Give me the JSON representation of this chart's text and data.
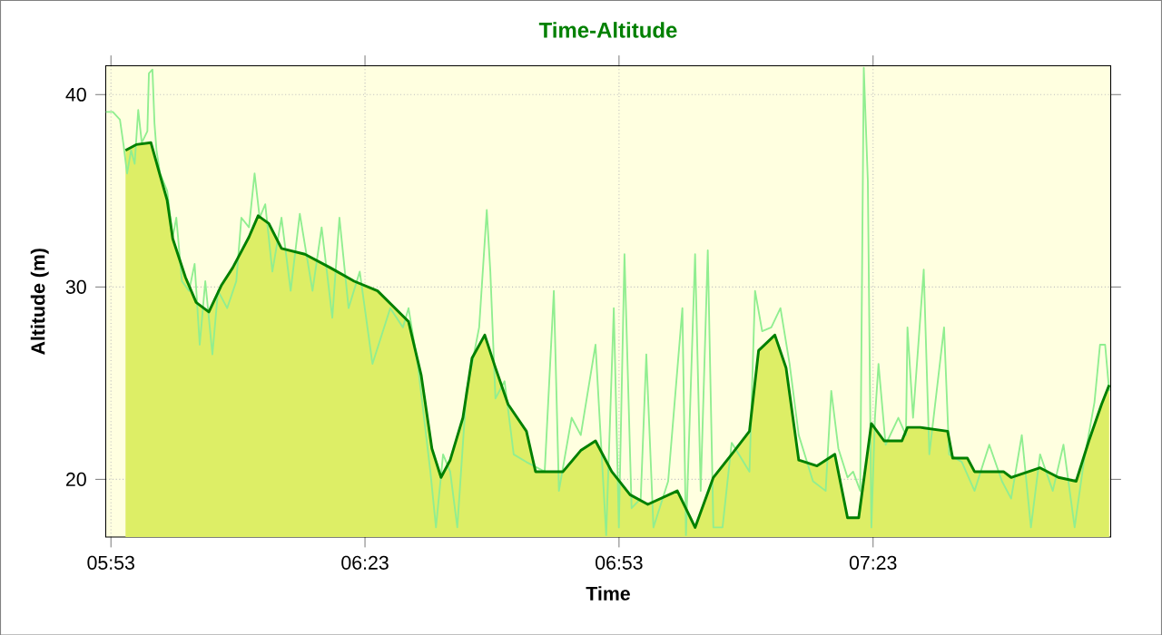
{
  "chart_data": {
    "type": "line",
    "title": "Time-Altitude",
    "xlabel": "Time",
    "ylabel": "Altitude (m)",
    "xlim": [
      5.873,
      7.851
    ],
    "ylim": [
      17,
      41.5
    ],
    "xticks": [
      {
        "value": 5.8833,
        "label": "05:53"
      },
      {
        "value": 6.3833,
        "label": "06:23"
      },
      {
        "value": 6.8833,
        "label": "06:53"
      },
      {
        "value": 7.3833,
        "label": "07:23"
      }
    ],
    "yticks": [
      20,
      30,
      40
    ],
    "grid": true,
    "series": [
      {
        "color": "#90ee90",
        "x": [
          5.873,
          5.887,
          5.901,
          5.908,
          5.915,
          5.923,
          5.93,
          5.937,
          5.944,
          5.955,
          5.958,
          5.965,
          5.969,
          5.973,
          5.98,
          5.994,
          6.005,
          6.012,
          6.023,
          6.037,
          6.048,
          6.058,
          6.069,
          6.083,
          6.094,
          6.112,
          6.13,
          6.14,
          6.155,
          6.166,
          6.176,
          6.187,
          6.201,
          6.219,
          6.237,
          6.255,
          6.28,
          6.298,
          6.319,
          6.333,
          6.351,
          6.373,
          6.398,
          6.433,
          6.458,
          6.469,
          6.487,
          6.512,
          6.523,
          6.537,
          6.551,
          6.565,
          6.583,
          6.594,
          6.608,
          6.623,
          6.63,
          6.64,
          6.658,
          6.676,
          6.701,
          6.737,
          6.755,
          6.765,
          6.79,
          6.808,
          6.837,
          6.858,
          6.873,
          6.883,
          6.894,
          6.908,
          6.926,
          6.937,
          6.951,
          6.98,
          7.008,
          7.015,
          7.033,
          7.044,
          7.058,
          7.069,
          7.087,
          7.105,
          7.14,
          7.151,
          7.165,
          7.183,
          7.201,
          7.219,
          7.237,
          7.265,
          7.29,
          7.301,
          7.315,
          7.333,
          7.344,
          7.358,
          7.365,
          7.373,
          7.38,
          7.387,
          7.394,
          7.408,
          7.433,
          7.448,
          7.451,
          7.462,
          7.483,
          7.494,
          7.523,
          7.533,
          7.558,
          7.583,
          7.612,
          7.637,
          7.655,
          7.676,
          7.694,
          7.712,
          7.737,
          7.758,
          7.78,
          7.798,
          7.819,
          7.83,
          7.84,
          7.848
        ],
        "values": [
          39.1,
          39.1,
          38.7,
          37.4,
          35.9,
          37.1,
          36.4,
          39.2,
          37.5,
          38.1,
          41.1,
          41.3,
          38.5,
          37.1,
          35.9,
          35.0,
          32.6,
          33.6,
          30.3,
          29.8,
          31.2,
          27.0,
          30.3,
          26.5,
          29.8,
          28.9,
          30.3,
          33.6,
          33.1,
          35.9,
          33.6,
          34.3,
          30.8,
          33.6,
          29.8,
          33.8,
          29.8,
          33.1,
          28.4,
          33.6,
          28.9,
          30.8,
          26.0,
          28.9,
          27.9,
          28.9,
          26.0,
          20.4,
          17.5,
          21.3,
          20.4,
          17.5,
          24.6,
          26.0,
          27.9,
          34.0,
          30.8,
          24.2,
          25.1,
          21.3,
          20.9,
          20.4,
          29.8,
          19.4,
          23.2,
          22.3,
          27.0,
          17.1,
          28.9,
          17.5,
          31.7,
          18.5,
          19.0,
          26.5,
          17.5,
          19.9,
          28.9,
          17.1,
          31.7,
          19.4,
          31.9,
          17.5,
          17.5,
          21.9,
          20.4,
          29.8,
          27.7,
          27.9,
          28.9,
          26.0,
          22.3,
          19.9,
          19.4,
          24.6,
          21.6,
          20.1,
          20.4,
          19.4,
          41.4,
          35.5,
          17.5,
          23.2,
          26.0,
          21.8,
          23.2,
          22.3,
          27.9,
          23.2,
          30.9,
          21.3,
          27.9,
          21.3,
          20.9,
          19.4,
          21.8,
          19.9,
          19.0,
          22.3,
          17.5,
          21.3,
          19.4,
          21.8,
          17.5,
          20.9,
          24.0,
          27.0,
          27.0,
          24.6
        ]
      },
      {
        "type": "area",
        "color": "#008000",
        "x": [
          5.912,
          5.933,
          5.962,
          5.98,
          5.994,
          6.005,
          6.03,
          6.051,
          6.076,
          6.101,
          6.123,
          6.155,
          6.173,
          6.194,
          6.219,
          6.265,
          6.315,
          6.362,
          6.408,
          6.469,
          6.494,
          6.515,
          6.533,
          6.551,
          6.576,
          6.594,
          6.619,
          6.64,
          6.665,
          6.701,
          6.719,
          6.773,
          6.808,
          6.837,
          6.869,
          6.905,
          6.94,
          6.998,
          7.033,
          7.069,
          7.105,
          7.14,
          7.158,
          7.19,
          7.212,
          7.237,
          7.273,
          7.308,
          7.333,
          7.355,
          7.38,
          7.405,
          7.44,
          7.451,
          7.476,
          7.53,
          7.54,
          7.569,
          7.583,
          7.64,
          7.655,
          7.712,
          7.748,
          7.783,
          7.808,
          7.833,
          7.848
        ],
        "values": [
          37.1,
          37.4,
          37.5,
          35.8,
          34.5,
          32.5,
          30.5,
          29.2,
          28.7,
          30.1,
          31.0,
          32.6,
          33.7,
          33.3,
          32.0,
          31.7,
          31.0,
          30.3,
          29.8,
          28.2,
          25.4,
          21.6,
          20.1,
          21.0,
          23.2,
          26.3,
          27.5,
          25.8,
          23.9,
          22.5,
          20.4,
          20.4,
          21.5,
          22.0,
          20.4,
          19.2,
          18.7,
          19.4,
          17.5,
          20.1,
          21.3,
          22.5,
          26.7,
          27.5,
          25.8,
          21.0,
          20.7,
          21.3,
          18.0,
          18.0,
          22.9,
          22.0,
          22.0,
          22.7,
          22.7,
          22.5,
          21.1,
          21.1,
          20.4,
          20.4,
          20.1,
          20.6,
          20.1,
          19.9,
          22.0,
          23.9,
          24.9
        ]
      }
    ]
  }
}
